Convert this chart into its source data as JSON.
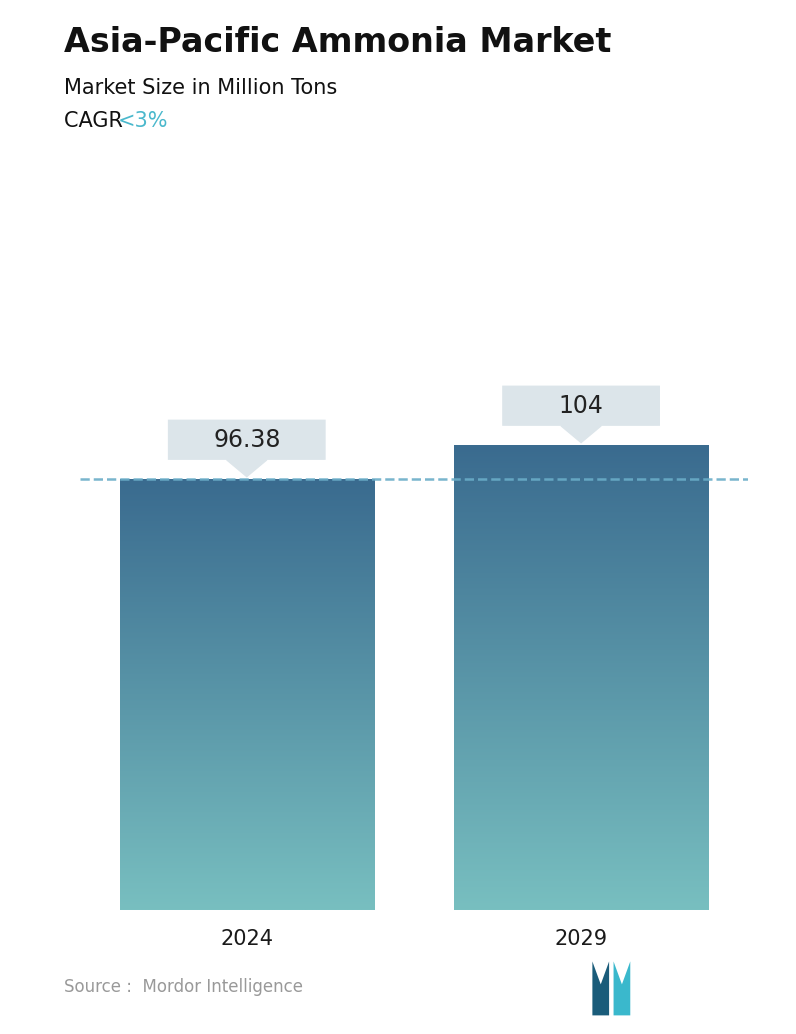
{
  "title": "Asia-Pacific Ammonia Market",
  "subtitle": "Market Size in Million Tons",
  "cagr_prefix": "CAGR ",
  "cagr_value": "<3%",
  "cagr_color": "#4ab8cc",
  "categories": [
    "2024",
    "2029"
  ],
  "values": [
    96.38,
    104
  ],
  "bar_color_top": "#3a6b8f",
  "bar_color_bottom": "#78bfc0",
  "dashed_line_color": "#6aadc8",
  "dashed_line_y": 96.38,
  "label_box_color": "#dce5ea",
  "label_text_color": "#222222",
  "source_text": "Source :  Mordor Intelligence",
  "source_color": "#999999",
  "background_color": "#ffffff",
  "ylim": [
    0,
    125
  ],
  "bar_width": 0.38,
  "title_fontsize": 24,
  "subtitle_fontsize": 15,
  "cagr_fontsize": 15,
  "tick_fontsize": 15,
  "label_fontsize": 17,
  "source_fontsize": 12
}
